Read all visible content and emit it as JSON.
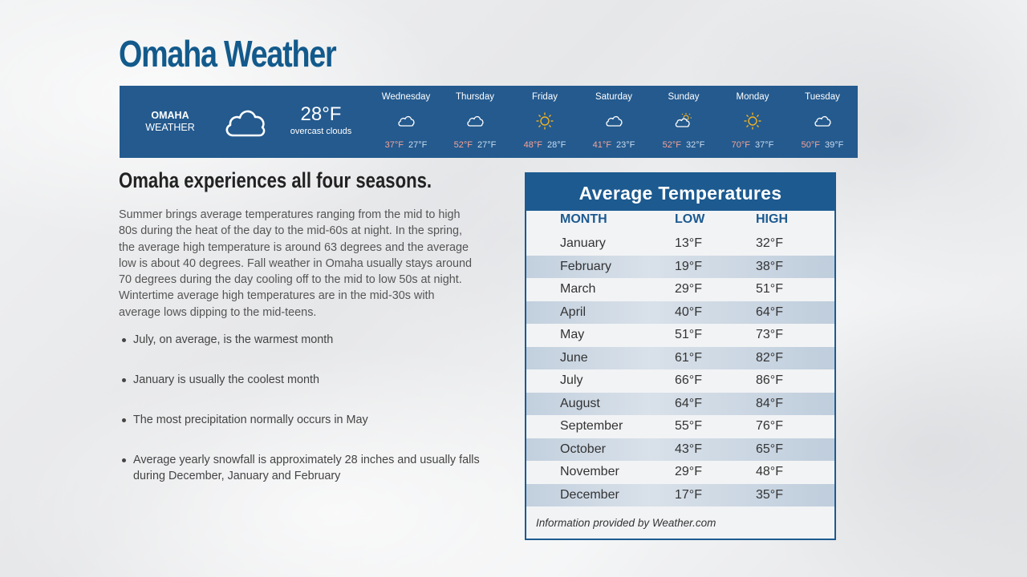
{
  "page": {
    "title": "Omaha Weather",
    "subtitle": "Omaha experiences all four seasons.",
    "intro": "Summer brings average temperatures ranging from the mid to high 80s during the heat of the day to the mid-60s at night. In the spring, the average high temperature is around 63 degrees and the average low is about 40 degrees. Fall weather in Omaha usually stays around 70 degrees during the day cooling off to the mid to low 50s at night. Wintertime average high temperatures are in the mid-30s with average lows dipping to the mid-teens.",
    "bullets": [
      "July, on average, is the warmest month",
      "January is usually the coolest month",
      "The most precipitation normally occurs in May",
      "Average yearly snowfall is approximately 28 inches and usually falls during December, January and February"
    ]
  },
  "banner": {
    "city": "OMAHA",
    "city_sub": "WEATHER",
    "current_icon": "cloud-icon",
    "current_temp": "28°F",
    "current_desc": "overcast clouds",
    "colors": {
      "background": "#245a8e",
      "high": "#f6a397",
      "low": "#c9dcef",
      "sun": "#f3b21f"
    },
    "forecast": [
      {
        "day": "Wednesday",
        "icon": "cloud-icon",
        "high": "37°F",
        "low": "27°F"
      },
      {
        "day": "Thursday",
        "icon": "cloud-icon",
        "high": "52°F",
        "low": "27°F"
      },
      {
        "day": "Friday",
        "icon": "sun-icon",
        "high": "48°F",
        "low": "28°F"
      },
      {
        "day": "Saturday",
        "icon": "cloud-icon",
        "high": "41°F",
        "low": "23°F"
      },
      {
        "day": "Sunday",
        "icon": "partly-sunny-icon",
        "high": "52°F",
        "low": "32°F"
      },
      {
        "day": "Monday",
        "icon": "sun-icon",
        "high": "70°F",
        "low": "37°F"
      },
      {
        "day": "Tuesday",
        "icon": "cloud-icon",
        "high": "50°F",
        "low": "39°F"
      }
    ]
  },
  "temps_table": {
    "title": "Average Temperatures",
    "headers": {
      "month": "MONTH",
      "low": "LOW",
      "high": "HIGH"
    },
    "accent_color": "#1c5a90",
    "rows": [
      {
        "month": "January",
        "low": "13°F",
        "high": "32°F"
      },
      {
        "month": "February",
        "low": "19°F",
        "high": "38°F"
      },
      {
        "month": "March",
        "low": "29°F",
        "high": "51°F"
      },
      {
        "month": "April",
        "low": "40°F",
        "high": "64°F"
      },
      {
        "month": "May",
        "low": "51°F",
        "high": "73°F"
      },
      {
        "month": "June",
        "low": "61°F",
        "high": "82°F"
      },
      {
        "month": "July",
        "low": "66°F",
        "high": "86°F"
      },
      {
        "month": "August",
        "low": "64°F",
        "high": "84°F"
      },
      {
        "month": "September",
        "low": "55°F",
        "high": "76°F"
      },
      {
        "month": "October",
        "low": "43°F",
        "high": "65°F"
      },
      {
        "month": "November",
        "low": "29°F",
        "high": "48°F"
      },
      {
        "month": "December",
        "low": "17°F",
        "high": "35°F"
      }
    ],
    "source": "Information provided by Weather.com"
  }
}
